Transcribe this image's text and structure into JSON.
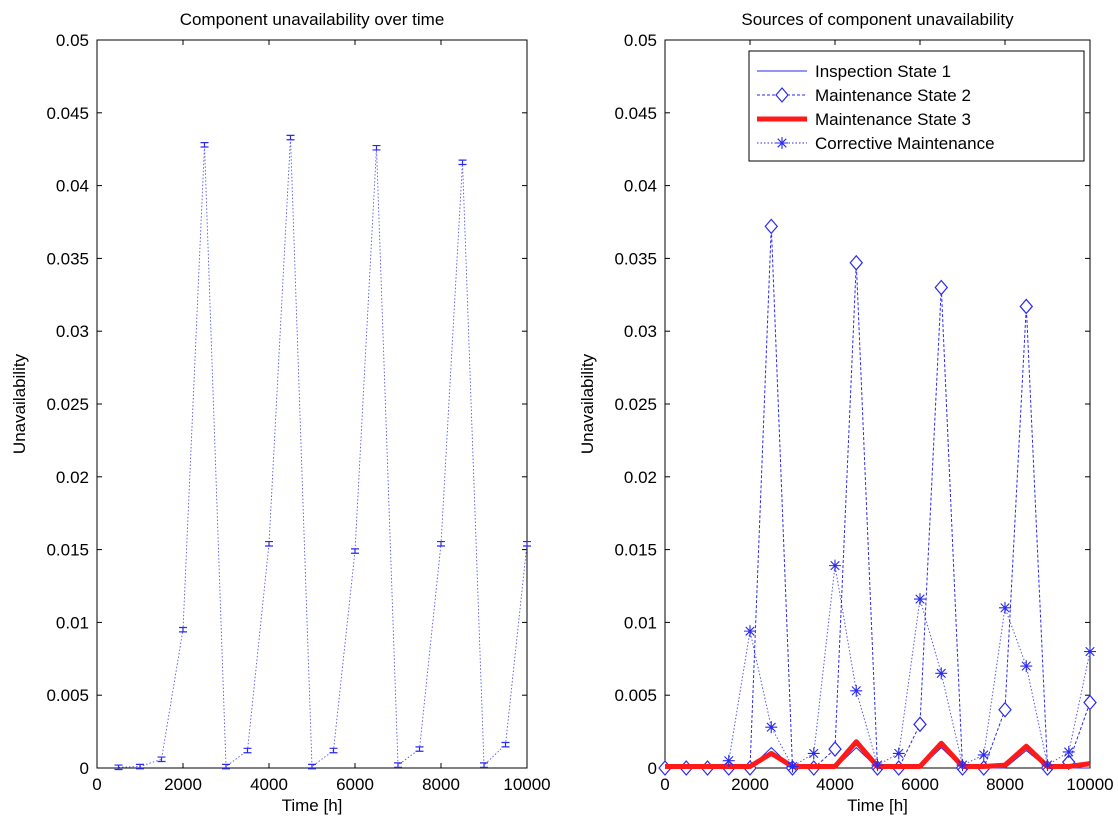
{
  "chart_data": [
    {
      "type": "line",
      "title": "Component unavailability over time",
      "xlabel": "Time [h]",
      "ylabel": "Unavailability",
      "xlim": [
        0,
        10000
      ],
      "ylim": [
        0,
        0.05
      ],
      "xticks": [
        "0",
        "2000",
        "4000",
        "6000",
        "8000",
        "10000"
      ],
      "yticks": [
        "0",
        "0.005",
        "0.01",
        "0.015",
        "0.02",
        "0.025",
        "0.03",
        "0.035",
        "0.04",
        "0.045",
        "0.05"
      ],
      "grid": false,
      "series": [
        {
          "style": "dotted line with error bars",
          "color": "#2a2aee",
          "x": [
            500,
            1000,
            1500,
            2000,
            2500,
            3000,
            3500,
            4000,
            4500,
            5000,
            5500,
            6000,
            6500,
            7000,
            7500,
            8000,
            8500,
            9000,
            9500,
            10000
          ],
          "y": [
            5e-05,
            0.0001,
            0.0006,
            0.0095,
            0.0428,
            0.0001,
            0.0012,
            0.0154,
            0.0433,
            0.0001,
            0.0012,
            0.0149,
            0.0426,
            0.0002,
            0.0013,
            0.0154,
            0.0416,
            0.0002,
            0.0016,
            0.0154
          ]
        }
      ]
    },
    {
      "type": "line",
      "title": "Sources of component unavailability",
      "xlabel": "Time [h]",
      "ylabel": "Unavailability",
      "xlim": [
        0,
        10000
      ],
      "ylim": [
        0,
        0.05
      ],
      "xticks": [
        "0",
        "2000",
        "4000",
        "6000",
        "8000",
        "10000"
      ],
      "yticks": [
        "0",
        "0.005",
        "0.01",
        "0.015",
        "0.02",
        "0.025",
        "0.03",
        "0.035",
        "0.04",
        "0.045",
        "0.05"
      ],
      "grid": false,
      "legend_position": "top-right",
      "series": [
        {
          "name": "Inspection State 1",
          "style": "solid",
          "color": "#2a2aee",
          "x": [
            0,
            500,
            1000,
            1500,
            2000,
            2500,
            3000,
            3500,
            4000,
            4500,
            5000,
            5500,
            6000,
            6500,
            7000,
            7500,
            8000,
            8500,
            9000,
            9500,
            10000
          ],
          "y": [
            0,
            0,
            0,
            0,
            0,
            0.0014,
            0,
            0,
            0,
            0.0014,
            0,
            0,
            0,
            0.0014,
            0,
            0,
            0,
            0.0012,
            0,
            0,
            0
          ]
        },
        {
          "name": "Maintenance State 2",
          "style": "dashed-diamond",
          "color": "#2a2aee",
          "x": [
            0,
            500,
            1000,
            1500,
            2000,
            2500,
            3000,
            3500,
            4000,
            4500,
            5000,
            5500,
            6000,
            6500,
            7000,
            7500,
            8000,
            8500,
            9000,
            9500,
            10000
          ],
          "y": [
            0,
            0,
            0,
            0,
            0,
            0.0372,
            0,
            0,
            0.0013,
            0.0347,
            0,
            0,
            0.003,
            0.033,
            0,
            0,
            0.004,
            0.0317,
            0,
            0.0004,
            0.0045
          ]
        },
        {
          "name": "Maintenance State 3",
          "style": "thick-solid",
          "color": "#ff1a1a",
          "x": [
            0,
            500,
            1000,
            1500,
            2000,
            2500,
            3000,
            3500,
            4000,
            4500,
            5000,
            5500,
            6000,
            6500,
            7000,
            7500,
            8000,
            8500,
            9000,
            9500,
            10000
          ],
          "y": [
            0.0001,
            0.0001,
            0.0001,
            0.0001,
            0.0001,
            0.001,
            0.0001,
            0.0001,
            0.0001,
            0.0018,
            0.0001,
            0.0001,
            0.0001,
            0.0017,
            0.0001,
            0.0001,
            0.0002,
            0.0015,
            0.0001,
            0.0001,
            0.0003
          ]
        },
        {
          "name": "Corrective Maintenance",
          "style": "dotted-asterisk",
          "color": "#2a2aee",
          "x": [
            1500,
            2000,
            2500,
            3000,
            3500,
            4000,
            4500,
            5000,
            5500,
            6000,
            6500,
            7000,
            7500,
            8000,
            8500,
            9000,
            9500,
            10000
          ],
          "y": [
            0.0005,
            0.0094,
            0.0028,
            0.0001,
            0.001,
            0.0139,
            0.0053,
            0.0002,
            0.001,
            0.0116,
            0.0065,
            0.0002,
            0.0009,
            0.011,
            0.007,
            0.0002,
            0.0011,
            0.008
          ]
        }
      ]
    }
  ]
}
